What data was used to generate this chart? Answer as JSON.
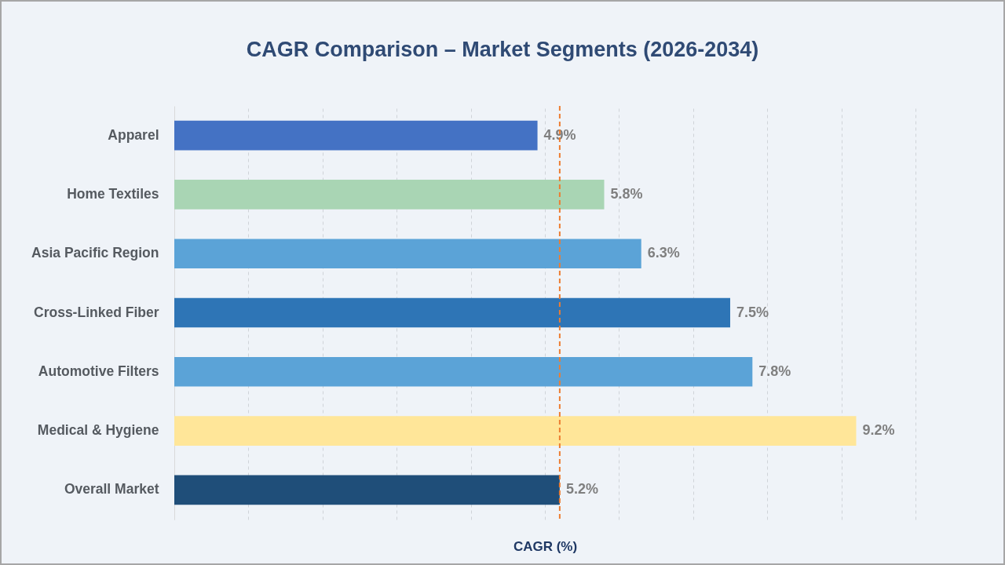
{
  "chart_data": {
    "type": "bar",
    "orientation": "horizontal",
    "title": "CAGR Comparison – Market Segments (2026-2034)",
    "xlabel": "CAGR (%)",
    "categories": [
      "Apparel",
      "Home Textiles",
      "Asia Pacific Region",
      "Cross-Linked Fiber",
      "Automotive Filters",
      "Medical & Hygiene",
      "Overall Market"
    ],
    "values": [
      4.9,
      5.8,
      6.3,
      7.5,
      7.8,
      9.2,
      5.2
    ],
    "colors": [
      "#4472c4",
      "#a9d5b4",
      "#5ba3d7",
      "#2e75b6",
      "#5ba3d7",
      "#ffe699",
      "#1f4e79"
    ],
    "value_labels": [
      "4.9%",
      "5.8%",
      "6.3%",
      "7.5%",
      "7.8%",
      "9.2%",
      "5.2%"
    ],
    "xlim": [
      0,
      10
    ],
    "xticks": [
      {
        "value": 0,
        "label": null
      },
      {
        "value": 1,
        "label": null
      },
      {
        "value": 2,
        "label": null
      },
      {
        "value": 3,
        "label": null
      },
      {
        "value": 4,
        "label": null
      },
      {
        "value": 5,
        "label": null
      },
      {
        "value": 6,
        "label": null
      },
      {
        "value": 7,
        "label": null
      },
      {
        "value": 8,
        "label": null
      },
      {
        "value": 9,
        "label": null
      },
      {
        "value": 10,
        "label": null
      }
    ],
    "grid": "x",
    "tick_labels": "y",
    "ref_lines": [
      {
        "axis": "x",
        "value": 5.2,
        "color": "#ed7d31",
        "line_style": "dashed"
      }
    ]
  }
}
